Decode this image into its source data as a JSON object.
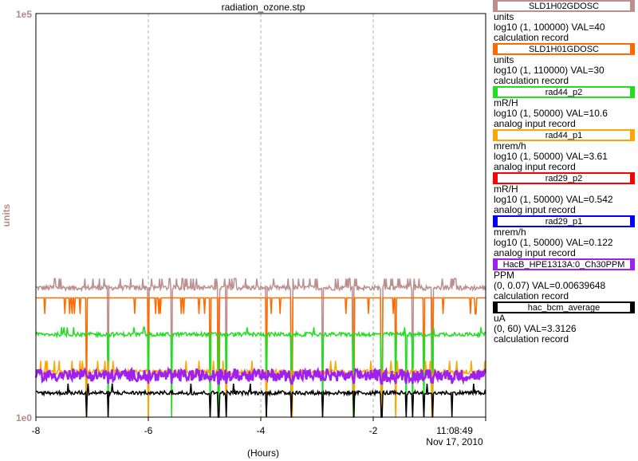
{
  "chart_data": {
    "type": "line",
    "title": "radiation_ozone.stp",
    "ylabel": "units",
    "xlabel": "(Hours)",
    "y_scale": "log",
    "ylim": [
      1,
      100000
    ],
    "y_tick_labels": [
      "1e5",
      "1e0"
    ],
    "xlim": [
      -8.0,
      0.0
    ],
    "x_ticks": [
      -8,
      -6,
      -4,
      -2
    ],
    "x_tick_labels": [
      "-8",
      "-6",
      "-4",
      "-2"
    ],
    "end_time": "11:08:49",
    "end_date": "Nov 17, 2010",
    "grid": true,
    "legend_position": "right",
    "series": [
      {
        "name": "SLD1H02GDOSC",
        "color": "#bc8f8f",
        "level": 40,
        "lower": 0.9,
        "upper": 52,
        "noise": 0.06,
        "spike_rate": 0.12
      },
      {
        "name": "SLD1H01GDOSC",
        "color": "#ff6a00",
        "level": 30,
        "lower": 0.9,
        "upper": 30,
        "noise": 0.0,
        "spike_rate": 0.05,
        "dips_to": 19
      },
      {
        "name": "rad44_p2",
        "color": "#22dd22",
        "level": 10.6,
        "lower": 0.9,
        "upper": 13,
        "noise": 0.05,
        "spike_rate": 0.03
      },
      {
        "name": "rad44_p1",
        "color": "#ffa500",
        "level": 3.61,
        "lower": 0.9,
        "upper": 5,
        "noise": 0.06,
        "spike_rate": 0.04
      },
      {
        "name": "HacB_HPE1313A:0_Ch30PPM",
        "color": "#a020f0",
        "level": 3.3,
        "lower": 2.6,
        "upper": 4.0,
        "noise": 0.15,
        "spike_rate": 0.0
      },
      {
        "name": "hac_bcm_average",
        "color": "#000000",
        "level": 2.0,
        "lower": 0.9,
        "upper": 2.6,
        "noise": 0.05,
        "spike_rate": 0.02
      }
    ]
  },
  "legend": [
    {
      "name": "SLD1H02GDOSC",
      "color": "#bc8f8f",
      "units": "units",
      "range": "log10 (1, 100000) VAL=40",
      "record": "calculation record"
    },
    {
      "name": "SLD1H01GDOSC",
      "color": "#ff6a00",
      "units": "units",
      "range": "log10 (1, 110000) VAL=30",
      "record": "calculation record"
    },
    {
      "name": "rad44_p2",
      "color": "#22dd22",
      "units": "mR/H",
      "range": "log10 (1, 50000) VAL=10.6",
      "record": "analog input record"
    },
    {
      "name": "rad44_p1",
      "color": "#ffa500",
      "units": "mrem/h",
      "range": "log10 (1, 50000) VAL=3.61",
      "record": "analog input record"
    },
    {
      "name": "rad29_p2",
      "color": "#ff0000",
      "units": "mR/H",
      "range": "log10 (1, 50000) VAL=0.542",
      "record": "analog input record"
    },
    {
      "name": "rad29_p1",
      "color": "#0000ff",
      "units": "mrem/h",
      "range": "log10 (1, 50000) VAL=0.122",
      "record": "analog input record"
    },
    {
      "name": "HacB_HPE1313A:0_Ch30PPM",
      "color": "#a020f0",
      "units": "PPM",
      "range": "(0, 0.07) VAL=0.00639648",
      "record": "calculation record"
    },
    {
      "name": "hac_bcm_average",
      "color": "#000000",
      "units": "uA",
      "range": "(0, 60) VAL=3.3126",
      "record": "calculation record"
    }
  ]
}
